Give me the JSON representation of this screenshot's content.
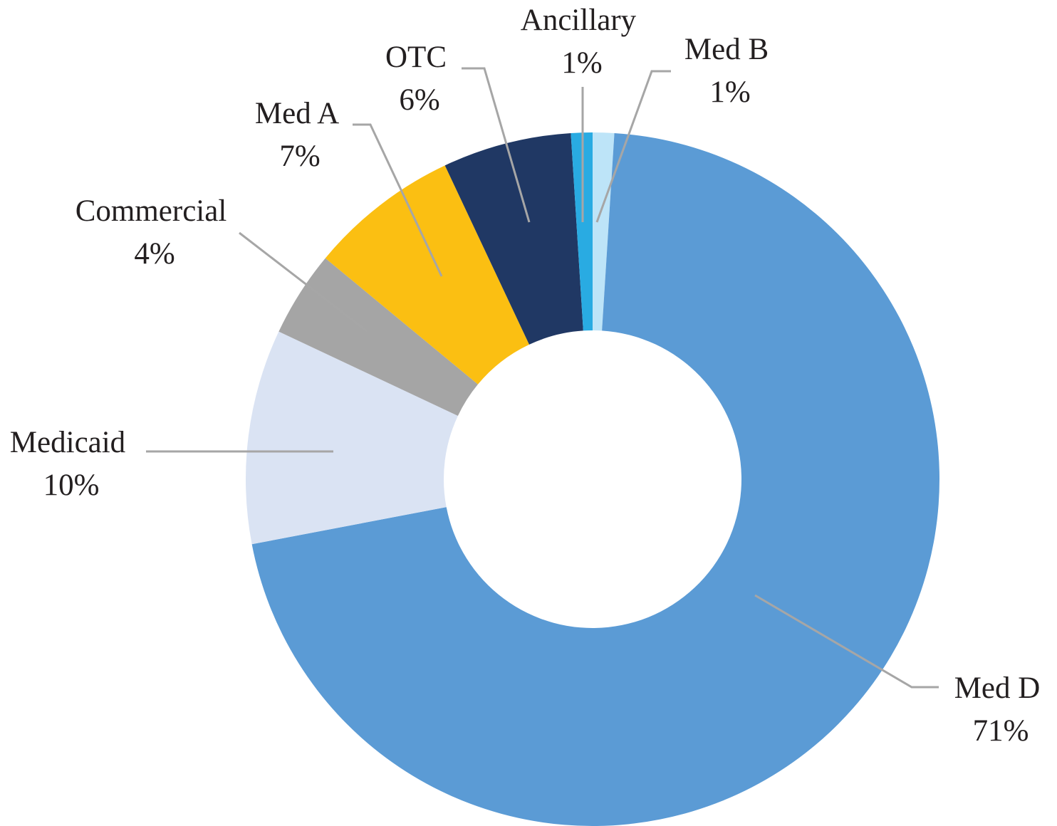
{
  "chart_data": {
    "type": "pie",
    "variant": "donut",
    "title": "",
    "legend": "none",
    "slices": [
      {
        "id": "med-d",
        "label": "Med D",
        "pct_label": "71%",
        "value": 71,
        "color": "#5b9bd5"
      },
      {
        "id": "medicaid",
        "label": "Medicaid",
        "pct_label": "10%",
        "value": 10,
        "color": "#dae3f3"
      },
      {
        "id": "commercial",
        "label": "Commercial",
        "pct_label": "4%",
        "value": 4,
        "color": "#a5a5a5"
      },
      {
        "id": "med-a",
        "label": "Med A",
        "pct_label": "7%",
        "value": 7,
        "color": "#fbbf12"
      },
      {
        "id": "otc",
        "label": "OTC",
        "pct_label": "6%",
        "value": 6,
        "color": "#203864"
      },
      {
        "id": "ancillary",
        "label": "Ancillary",
        "pct_label": "1%",
        "value": 1,
        "color": "#29abe2"
      },
      {
        "id": "med-b",
        "label": "Med B",
        "pct_label": "1%",
        "value": 1,
        "color": "#bde4f8"
      }
    ]
  }
}
